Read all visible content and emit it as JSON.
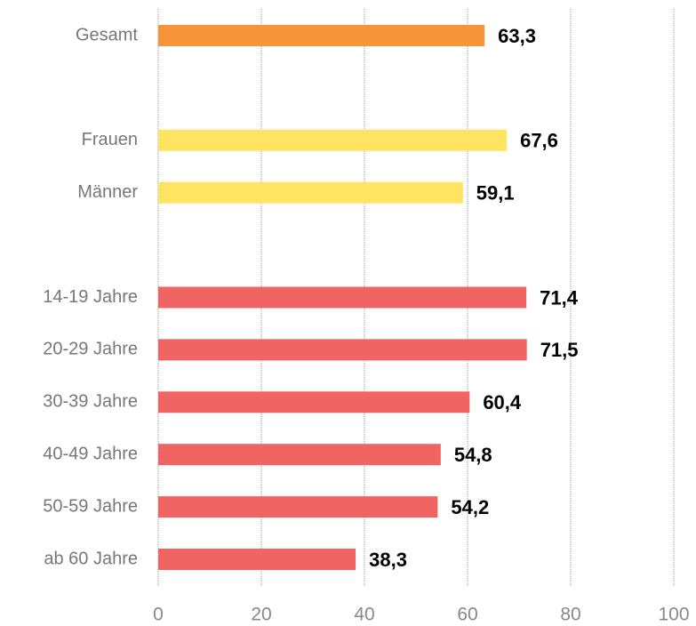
{
  "chart_data": {
    "type": "bar",
    "orientation": "horizontal",
    "categories": [
      "Gesamt",
      null,
      "Frauen",
      "Männer",
      null,
      "14-19 Jahre",
      "20-29 Jahre",
      "30-39 Jahre",
      "40-49 Jahre",
      "50-59 Jahre",
      "ab 60 Jahre"
    ],
    "values": [
      63.3,
      null,
      67.6,
      59.1,
      null,
      71.4,
      71.5,
      60.4,
      54.8,
      54.2,
      38.3
    ],
    "value_labels": [
      "63,3",
      null,
      "67,6",
      "59,1",
      null,
      "71,4",
      "71,5",
      "60,4",
      "54,8",
      "54,2",
      "38,3"
    ],
    "colors": [
      "#f7943a",
      null,
      "#ffe463",
      "#ffe463",
      null,
      "#f06464",
      "#f06464",
      "#f06464",
      "#f06464",
      "#f06464",
      "#f06464"
    ],
    "xlim": [
      0,
      100
    ],
    "xticks": [
      0,
      20,
      40,
      60,
      80,
      100
    ],
    "grid": true
  }
}
